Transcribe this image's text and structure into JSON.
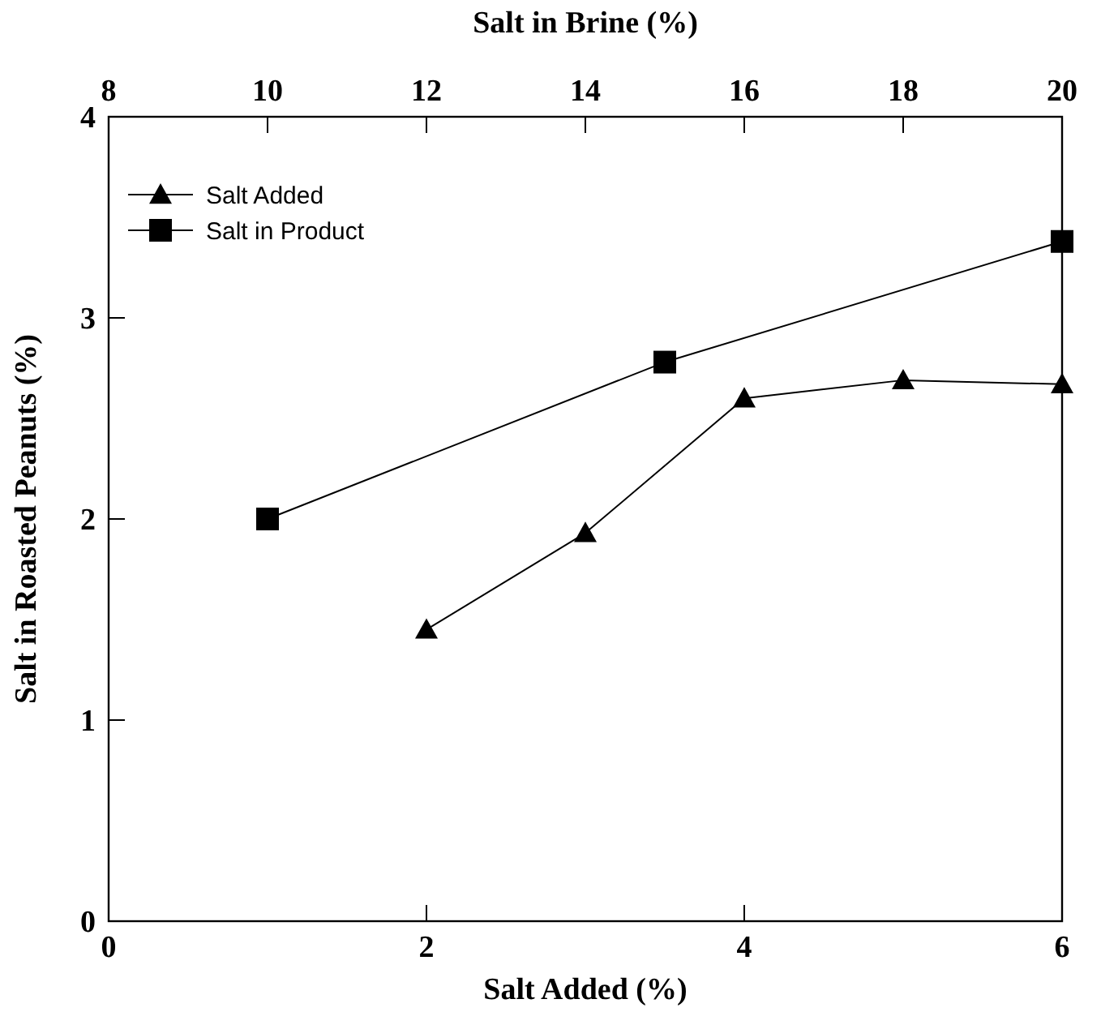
{
  "chart_data": {
    "type": "line",
    "xlabel": "Salt Added (%)",
    "x2label": "Salt in Brine (%)",
    "ylabel": "Salt in Roasted Peanuts (%)",
    "xlim": [
      0,
      6
    ],
    "xticks": [
      0,
      2,
      4,
      6
    ],
    "x2lim": [
      8,
      20
    ],
    "x2ticks": [
      8,
      10,
      12,
      14,
      16,
      18,
      20
    ],
    "ylim": [
      0,
      4
    ],
    "yticks": [
      0,
      1,
      2,
      3,
      4
    ],
    "legend": "top left",
    "grid": false,
    "series": [
      {
        "name": "Salt Added",
        "color": "#000000",
        "marker": "triangle",
        "x": [
          2,
          3,
          4,
          5,
          6
        ],
        "values": [
          1.45,
          1.93,
          2.6,
          2.69,
          2.67
        ]
      },
      {
        "name": "Salt in Product",
        "color": "#000000",
        "marker": "square",
        "axis": "x2",
        "x": [
          10,
          15,
          20
        ],
        "values": [
          2.0,
          2.78,
          3.38
        ]
      }
    ]
  }
}
